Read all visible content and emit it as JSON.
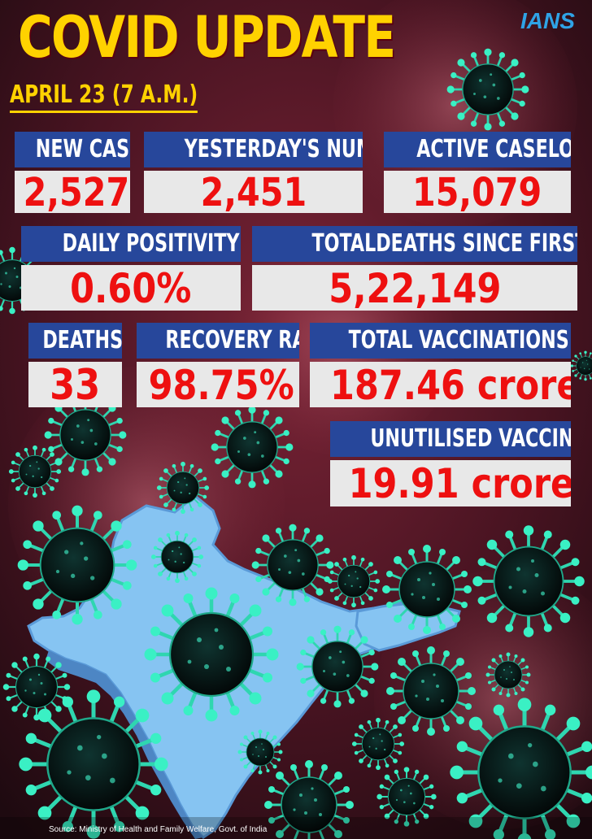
{
  "header": {
    "title": "COVID UPDATE",
    "brand": "IANS",
    "date": "APRIL 23 (7 A.M.)"
  },
  "stats": {
    "new_cases": {
      "label": "NEW CASES",
      "value": "2,527"
    },
    "yesterday": {
      "label": "YESTERDAY'S NUMBER",
      "value": "2,451"
    },
    "active": {
      "label": "ACTIVE CASELOAD",
      "value": "15,079"
    },
    "positivity": {
      "label": "DAILY POSITIVITY RATE",
      "value": "0.60%"
    },
    "total_deaths": {
      "label": "TOTALDEATHS SINCE FIRST WAVE",
      "value": "5,22,149"
    },
    "deaths": {
      "label": "DEATHS",
      "value": "33"
    },
    "recovery": {
      "label": "RECOVERY RATE",
      "value": "98.75%"
    },
    "vaccinations": {
      "label": "TOTAL VACCINATIONS",
      "value": "187.46 crore"
    },
    "unutilised": {
      "label": "UNUTILISED VACCINES",
      "value": "19.91 crore"
    }
  },
  "footer": {
    "source": "Source: Ministry of Health and Family Welfare, Govt. of India"
  },
  "colors": {
    "title": "#ffd200",
    "label_bg": "#27479b",
    "value_bg": "#e8e8e8",
    "value_text": "#ee1010",
    "brand": "#2fa3e6"
  }
}
